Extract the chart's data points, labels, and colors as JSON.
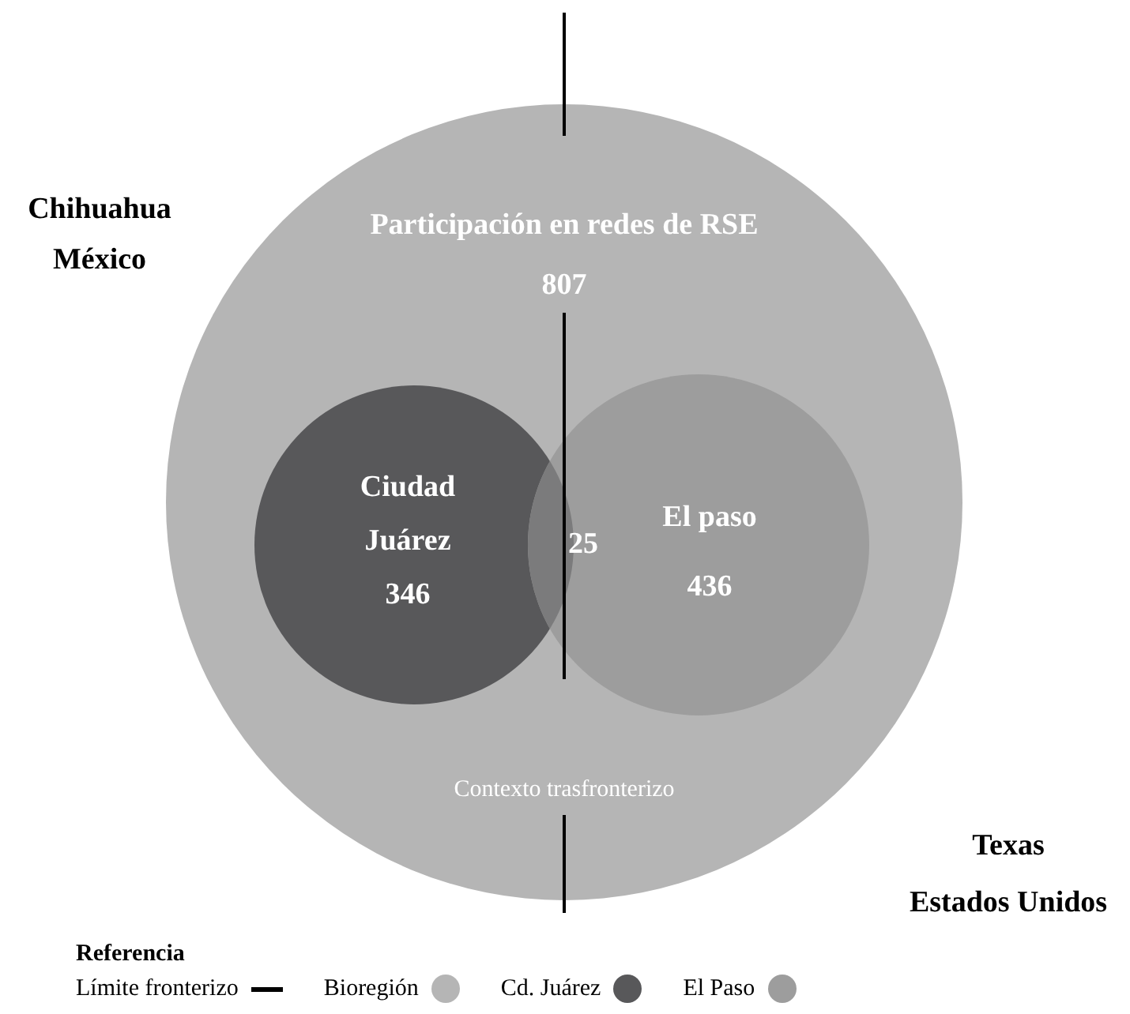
{
  "chart_data": {
    "type": "other",
    "categories": [
      "Participación en redes de RSE",
      "Ciudad\nJuárez",
      "El paso"
    ],
    "values": [
      807,
      346,
      436
    ],
    "colors": [
      "#b5b5b5",
      "#58585a",
      "#9d9d9d"
    ],
    "data_labels": true,
    "annotations": [
      "Chihuahua\nMéxico",
      "Texas\nEstados Unidos",
      "Contexto trasfronterizo",
      "25",
      "Límite fronterizo",
      "Bioregión",
      "Cd. Juárez",
      "El Paso"
    ],
    "legend_title": "Referencia"
  }
}
